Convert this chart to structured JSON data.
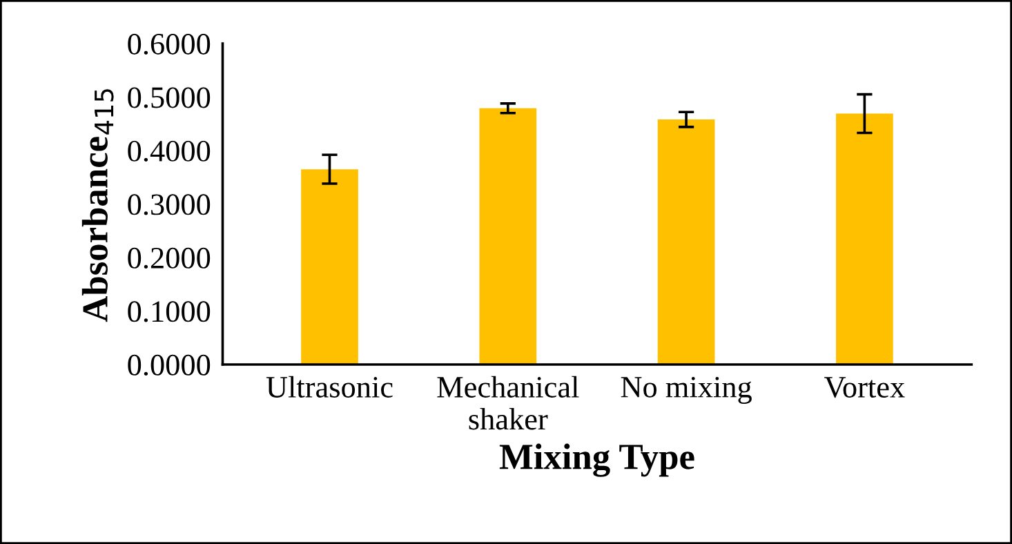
{
  "chart_data": {
    "type": "bar",
    "xlabel": "Mixing Type",
    "ylabel": "Absorbance$_{415}$",
    "categories": [
      "Ultrasonic",
      "Mechanical\nshaker",
      "No mixing",
      "Vortex"
    ],
    "values": [
      0.365,
      0.479,
      0.458,
      0.469
    ],
    "errors": [
      0.027,
      0.009,
      0.014,
      0.036
    ],
    "color": "#ffc000",
    "ylim": [
      0,
      0.6
    ],
    "yticks": [
      {
        "value": 0,
        "label": "0.0000"
      },
      {
        "value": 0.1,
        "label": "0.1000"
      },
      {
        "value": 0.2,
        "label": "0.2000"
      },
      {
        "value": 0.3,
        "label": "0.3000"
      },
      {
        "value": 0.4,
        "label": "0.4000"
      },
      {
        "value": 0.5,
        "label": "0.5000"
      },
      {
        "value": 0.6,
        "label": "0.6000"
      }
    ],
    "grid": false
  }
}
